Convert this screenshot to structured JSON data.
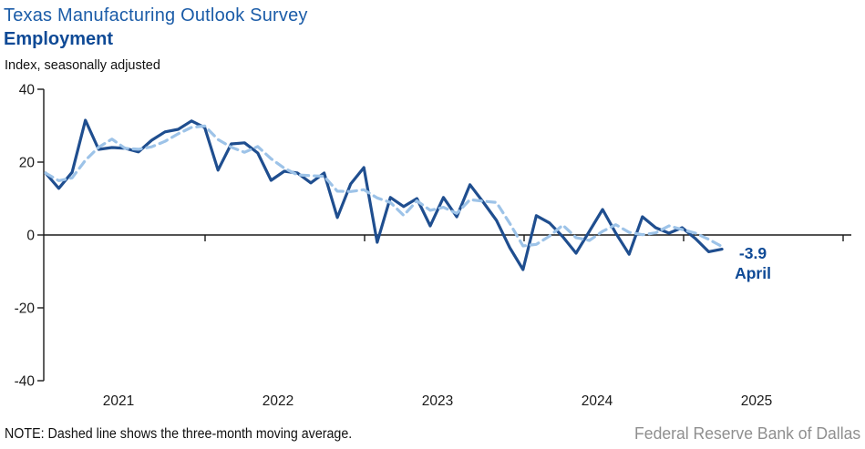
{
  "header": {
    "title": "Texas Manufacturing Outlook Survey",
    "series_title": "Employment",
    "axis_note": "Index, seasonally adjusted"
  },
  "footer": {
    "note": "NOTE: Dashed line shows the three-month moving average.",
    "source": "Federal Reserve Bank of Dallas"
  },
  "annotation": {
    "value": "-3.9",
    "month": "April"
  },
  "colors": {
    "title_blue": "#1b5ca8",
    "series_title_navy": "#0f4a96",
    "solid_line": "#1f4e8f",
    "dashed_line": "#9dc3e8",
    "axis_black": "#1a1a1a",
    "annotation_navy": "#0f4a96",
    "source_gray": "#8f8f8f"
  },
  "chart_data": {
    "type": "line",
    "title": "Texas Manufacturing Outlook Survey — Employment",
    "ylabel": "Index, seasonally adjusted",
    "xlabel": "",
    "ylim": [
      -40,
      40
    ],
    "yticks": [
      40,
      20,
      0,
      -20,
      -40
    ],
    "grid": false,
    "legend_position": "none",
    "x_year_labels": [
      "2021",
      "2022",
      "2023",
      "2024",
      "2025"
    ],
    "start_month": "2021-01",
    "end_month": "2025-04",
    "series": [
      {
        "name": "Employment index (monthly, seasonally adjusted)",
        "style": "solid",
        "values": [
          17.0,
          12.8,
          17.2,
          31.5,
          23.5,
          24.0,
          23.8,
          22.8,
          26.0,
          28.3,
          29.0,
          31.3,
          29.5,
          17.8,
          25.0,
          25.3,
          22.5,
          15.0,
          17.5,
          17.0,
          14.3,
          17.0,
          4.8,
          14.0,
          18.5,
          -2.0,
          10.3,
          7.8,
          10.0,
          2.5,
          10.3,
          5.0,
          13.8,
          9.0,
          4.0,
          -3.5,
          -9.5,
          5.3,
          3.3,
          -0.5,
          -5.0,
          1.0,
          7.0,
          0.5,
          -5.3,
          5.0,
          2.0,
          0.5,
          2.0,
          -1.0,
          -4.6,
          -3.9
        ]
      },
      {
        "name": "Three-month moving average",
        "style": "dashed",
        "derived": "3-month moving average of the monthly series"
      }
    ],
    "last_point_label": {
      "value": -3.9,
      "month": "April"
    }
  }
}
